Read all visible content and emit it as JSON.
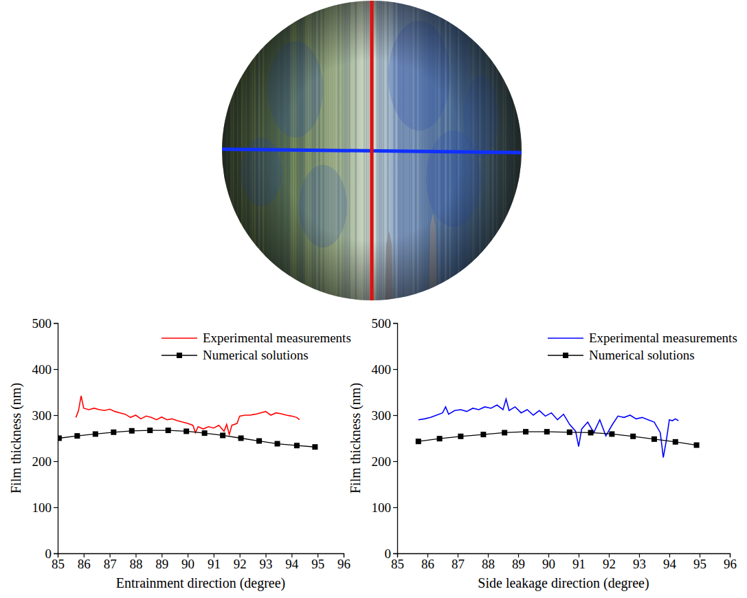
{
  "chart_data": [
    {
      "type": "line",
      "x_label": "Entrainment direction (degree)",
      "y_label": "Film thickness (nm)",
      "xlim": [
        85,
        96
      ],
      "xticks": [
        85,
        86,
        87,
        88,
        89,
        90,
        91,
        92,
        93,
        94,
        95,
        96
      ],
      "ylim": [
        0,
        500
      ],
      "yticks": [
        0,
        100,
        200,
        300,
        400,
        500
      ],
      "grid": false,
      "legend": "upper right",
      "series": [
        {
          "name": "Experimental measurements",
          "color": "#ff0000",
          "marker": "none",
          "line_style": "solid",
          "x": [
            85.7,
            85.8,
            85.9,
            86.0,
            86.2,
            86.4,
            86.6,
            86.8,
            87.0,
            87.2,
            87.4,
            87.6,
            87.8,
            88.0,
            88.2,
            88.4,
            88.6,
            88.8,
            89.0,
            89.2,
            89.4,
            89.6,
            89.8,
            90.0,
            90.2,
            90.3,
            90.4,
            90.6,
            90.8,
            91.0,
            91.2,
            91.4,
            91.5,
            91.6,
            91.7,
            91.9,
            92.0,
            92.2,
            92.4,
            92.6,
            92.8,
            93.0,
            93.2,
            93.4,
            93.6,
            93.8,
            94.0,
            94.2,
            94.3
          ],
          "values": [
            295,
            310,
            342,
            315,
            312,
            315,
            312,
            310,
            313,
            308,
            305,
            302,
            295,
            300,
            292,
            298,
            295,
            290,
            296,
            290,
            292,
            288,
            285,
            282,
            278,
            262,
            275,
            270,
            275,
            272,
            278,
            265,
            280,
            258,
            278,
            282,
            298,
            300,
            300,
            302,
            305,
            308,
            300,
            305,
            303,
            300,
            298,
            295,
            290
          ]
        },
        {
          "name": "Numerical solutions",
          "color": "#000000",
          "marker": "square",
          "line_style": "solid",
          "x": [
            85.05,
            85.75,
            86.45,
            87.15,
            87.85,
            88.55,
            89.25,
            89.95,
            90.65,
            91.35,
            92.05,
            92.75,
            93.45,
            94.2,
            94.9
          ],
          "values": [
            250,
            255,
            259,
            263,
            266,
            267,
            267,
            265,
            261,
            256,
            250,
            244,
            238,
            234,
            231
          ]
        }
      ]
    },
    {
      "type": "line",
      "x_label": "Side leakage direction (degree)",
      "y_label": "Film thickness (nm)",
      "xlim": [
        85,
        96
      ],
      "xticks": [
        85,
        86,
        87,
        88,
        89,
        90,
        91,
        92,
        93,
        94,
        95,
        96
      ],
      "ylim": [
        0,
        500
      ],
      "yticks": [
        0,
        100,
        200,
        300,
        400,
        500
      ],
      "grid": false,
      "legend": "upper right",
      "series": [
        {
          "name": "Experimental measurements",
          "color": "#0000ff",
          "marker": "none",
          "line_style": "solid",
          "x": [
            85.7,
            85.9,
            86.1,
            86.3,
            86.5,
            86.6,
            86.7,
            86.9,
            87.1,
            87.3,
            87.5,
            87.7,
            87.9,
            88.1,
            88.3,
            88.5,
            88.6,
            88.7,
            88.9,
            89.1,
            89.3,
            89.5,
            89.7,
            89.9,
            90.1,
            90.3,
            90.5,
            90.7,
            90.9,
            91.0,
            91.1,
            91.3,
            91.5,
            91.7,
            91.9,
            92.1,
            92.3,
            92.5,
            92.7,
            92.9,
            93.1,
            93.3,
            93.5,
            93.7,
            93.8,
            93.9,
            94.0,
            94.1,
            94.2,
            94.3
          ],
          "values": [
            290,
            292,
            295,
            300,
            305,
            318,
            302,
            310,
            312,
            308,
            315,
            312,
            318,
            315,
            322,
            312,
            335,
            310,
            318,
            305,
            312,
            300,
            310,
            298,
            305,
            290,
            302,
            280,
            265,
            232,
            270,
            285,
            262,
            290,
            255,
            278,
            298,
            295,
            300,
            292,
            295,
            290,
            285,
            262,
            208,
            245,
            290,
            288,
            292,
            288
          ]
        },
        {
          "name": "Numerical solutions",
          "color": "#000000",
          "marker": "square",
          "line_style": "solid",
          "x": [
            85.7,
            86.4,
            87.1,
            87.85,
            88.55,
            89.25,
            89.95,
            90.7,
            91.4,
            92.1,
            92.8,
            93.5,
            94.2,
            94.9
          ],
          "values": [
            243,
            249,
            254,
            258,
            262,
            264,
            264,
            263,
            262,
            259,
            254,
            248,
            242,
            235
          ]
        }
      ]
    }
  ]
}
